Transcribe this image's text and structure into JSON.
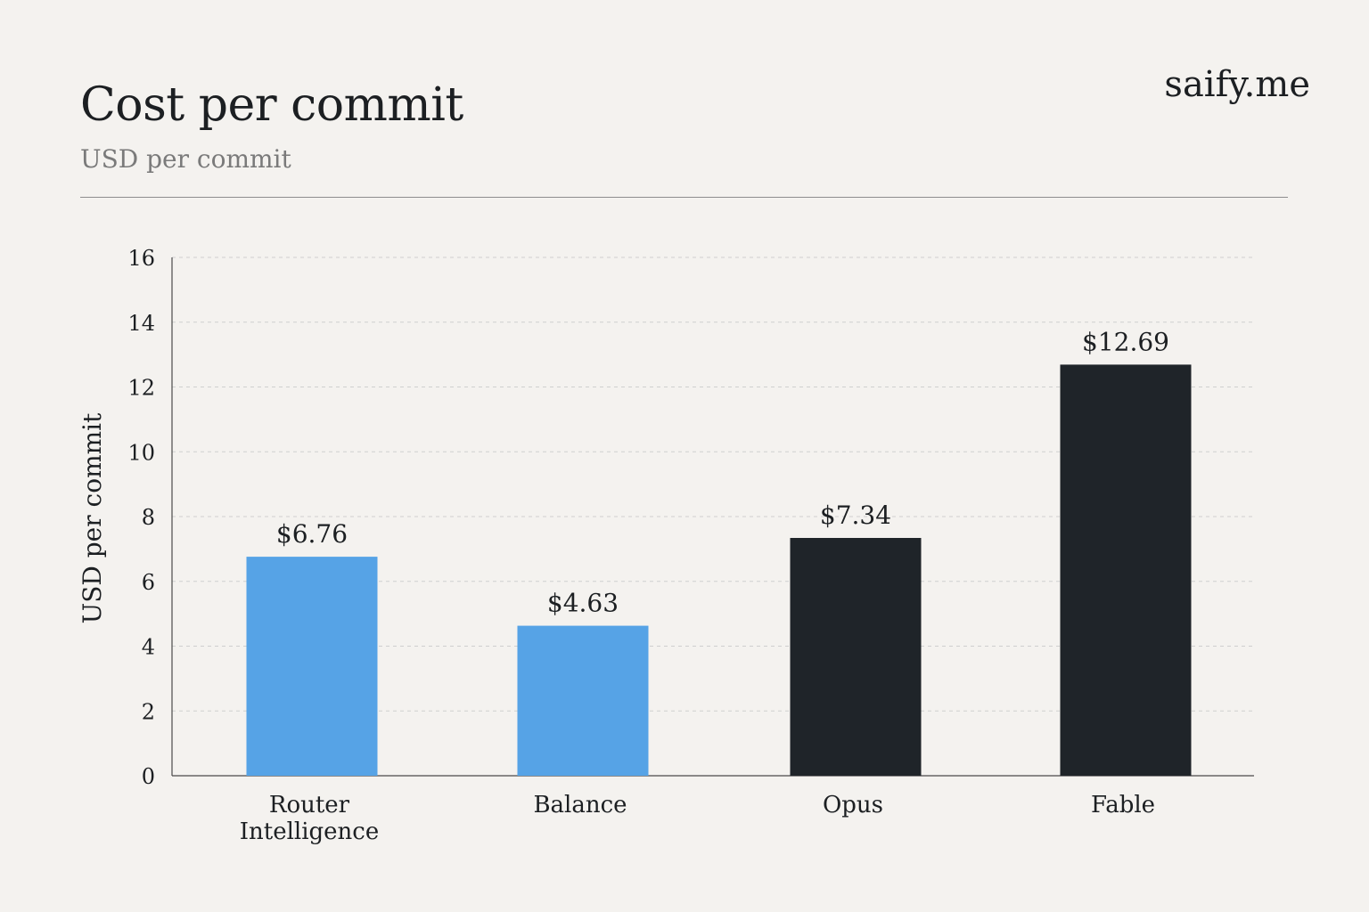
{
  "header": {
    "title": "Cost per commit",
    "subtitle": "USD per commit",
    "brand": "saify.me"
  },
  "colors": {
    "background": "#f4f2ef",
    "highlight_bar": "#56a3e6",
    "baseline_bar": "#1f2429",
    "text": "#1c1f22",
    "subtitle": "#7a7a7a",
    "grid": "#cfcfcf"
  },
  "chart_data": {
    "type": "bar",
    "title": "Cost per commit",
    "subtitle": "USD per commit",
    "xlabel": "",
    "ylabel": "USD per commit",
    "ylim": [
      0,
      16
    ],
    "yticks": [
      0,
      2,
      4,
      6,
      8,
      10,
      12,
      14,
      16
    ],
    "grid": "horizontal dashed",
    "categories": [
      [
        "Router",
        "Intelligence"
      ],
      [
        "Balance"
      ],
      [
        "Opus"
      ],
      [
        "Fable"
      ]
    ],
    "values": [
      6.76,
      4.63,
      7.34,
      12.69
    ],
    "data_labels": [
      "$6.76",
      "$4.63",
      "$7.34",
      "$12.69"
    ],
    "bar_colors": [
      "#56a3e6",
      "#56a3e6",
      "#1f2429",
      "#1f2429"
    ]
  }
}
